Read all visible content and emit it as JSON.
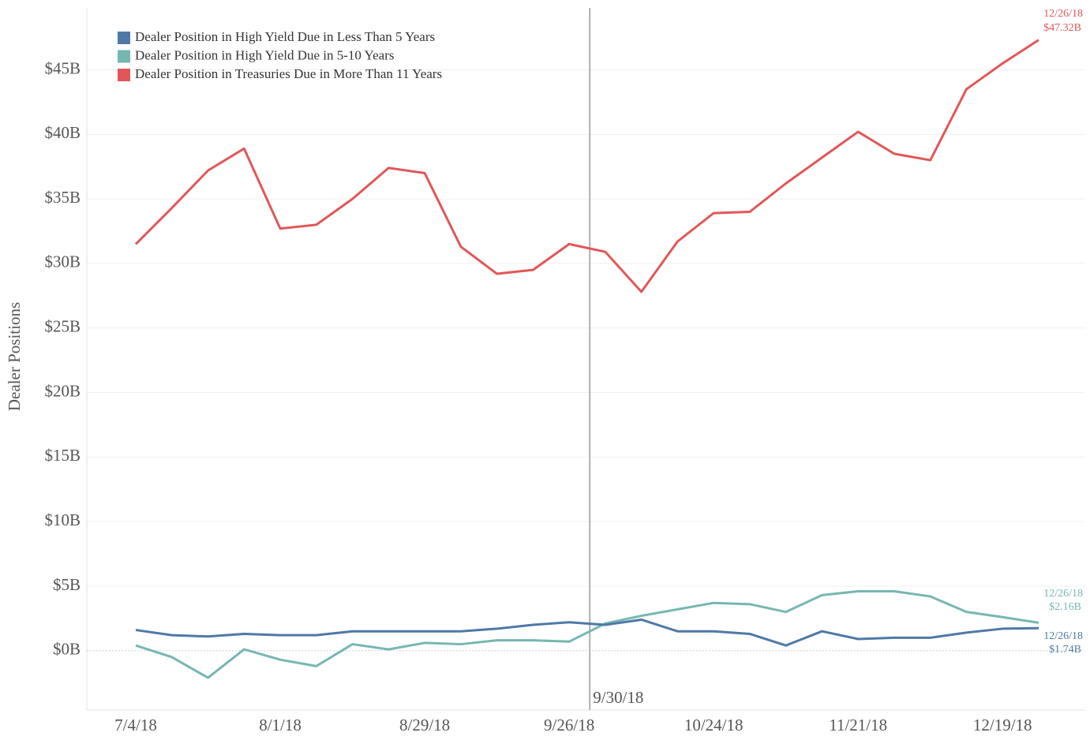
{
  "chart_data": {
    "type": "line",
    "y_label": "Dealer Positions",
    "x": [
      "7/4/18",
      "7/11/18",
      "7/18/18",
      "7/25/18",
      "8/1/18",
      "8/8/18",
      "8/15/18",
      "8/22/18",
      "8/29/18",
      "9/5/18",
      "9/12/18",
      "9/19/18",
      "9/26/18",
      "10/3/18",
      "10/10/18",
      "10/17/18",
      "10/24/18",
      "10/31/18",
      "11/7/18",
      "11/14/18",
      "11/21/18",
      "11/28/18",
      "12/5/18",
      "12/12/18",
      "12/19/18",
      "12/26/18"
    ],
    "xticks": [
      "7/4/18",
      "8/1/18",
      "8/29/18",
      "9/26/18",
      "10/24/18",
      "11/21/18",
      "12/19/18"
    ],
    "reference_line": "9/30/18",
    "ylim": [
      -4.6,
      49.8
    ],
    "yticks": [
      {
        "value": 0,
        "label": "$0B"
      },
      {
        "value": 5,
        "label": "$5B"
      },
      {
        "value": 10,
        "label": "$10B"
      },
      {
        "value": 15,
        "label": "$15B"
      },
      {
        "value": 20,
        "label": "$20B"
      },
      {
        "value": 25,
        "label": "$25B"
      },
      {
        "value": 30,
        "label": "$30B"
      },
      {
        "value": 35,
        "label": "$35B"
      },
      {
        "value": 40,
        "label": "$40B"
      },
      {
        "value": 45,
        "label": "$45B"
      }
    ],
    "grid": true,
    "legend": "top-left",
    "series": [
      {
        "name": "Dealer Position in High Yield Due in Less Than 5 Years",
        "color": "#4e79a7",
        "values": [
          1.6,
          1.2,
          1.1,
          1.3,
          1.2,
          1.2,
          1.5,
          1.5,
          1.5,
          1.5,
          1.7,
          2.0,
          2.2,
          2.0,
          2.4,
          1.5,
          1.5,
          1.3,
          0.4,
          1.5,
          0.9,
          1.0,
          1.0,
          1.4,
          1.7,
          1.74
        ],
        "value_labels": [
          null,
          null,
          null,
          null,
          null,
          null,
          null,
          null,
          null,
          null,
          null,
          null,
          null,
          null,
          null,
          null,
          null,
          null,
          null,
          null,
          null,
          null,
          null,
          null,
          null,
          "$1.74B"
        ]
      },
      {
        "name": "Dealer Position in High Yield Due in 5-10 Years",
        "color": "#76b7b2",
        "values": [
          0.4,
          -0.5,
          -2.1,
          0.1,
          -0.7,
          -1.2,
          0.5,
          0.1,
          0.6,
          0.5,
          0.8,
          0.8,
          0.7,
          2.1,
          2.7,
          3.2,
          3.7,
          3.6,
          3.0,
          4.3,
          4.6,
          4.6,
          4.2,
          3.0,
          2.6,
          2.16
        ],
        "value_labels": [
          null,
          null,
          null,
          null,
          null,
          null,
          null,
          null,
          null,
          null,
          null,
          null,
          null,
          null,
          null,
          null,
          null,
          null,
          null,
          null,
          null,
          null,
          null,
          null,
          null,
          "$2.16B"
        ]
      },
      {
        "name": "Dealer Position in Treasuries Due in More Than 11 Years",
        "color": "#e15759",
        "values": [
          31.5,
          34.3,
          37.2,
          38.9,
          32.7,
          33.0,
          35.0,
          37.4,
          37.0,
          31.3,
          29.2,
          29.5,
          31.5,
          30.9,
          27.8,
          31.7,
          33.9,
          34.0,
          36.2,
          38.2,
          40.2,
          38.5,
          38.0,
          43.5,
          45.5,
          47.32
        ],
        "value_labels": [
          null,
          null,
          null,
          null,
          null,
          null,
          null,
          null,
          null,
          null,
          null,
          null,
          null,
          null,
          null,
          null,
          null,
          null,
          null,
          null,
          null,
          null,
          null,
          null,
          null,
          "$47.32B"
        ]
      }
    ]
  }
}
